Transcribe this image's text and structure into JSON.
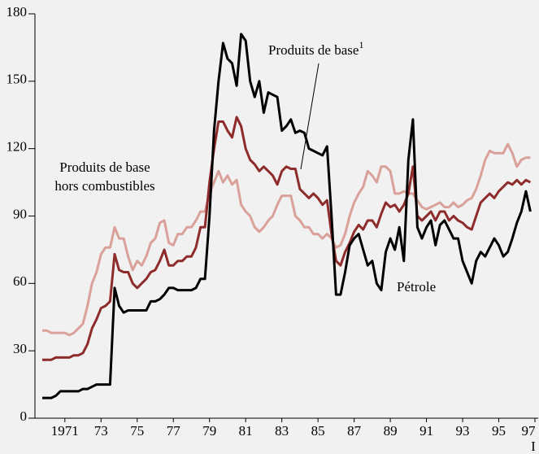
{
  "chart_data": {
    "type": "line",
    "x": [
      1970.25,
      1970.5,
      1970.75,
      1971,
      1971.25,
      1971.5,
      1971.75,
      1972,
      1972.25,
      1972.5,
      1972.75,
      1973,
      1973.25,
      1973.5,
      1973.75,
      1974,
      1974.25,
      1974.5,
      1974.75,
      1975,
      1975.25,
      1975.5,
      1975.75,
      1976,
      1976.25,
      1976.5,
      1976.75,
      1977,
      1977.25,
      1977.5,
      1977.75,
      1978,
      1978.25,
      1978.5,
      1978.75,
      1979,
      1979.25,
      1979.5,
      1979.75,
      1980,
      1980.25,
      1980.5,
      1980.75,
      1981,
      1981.25,
      1981.5,
      1981.75,
      1982,
      1982.25,
      1982.5,
      1982.75,
      1983,
      1983.25,
      1983.5,
      1983.75,
      1984,
      1984.25,
      1984.5,
      1984.75,
      1985,
      1985.25,
      1985.5,
      1985.75,
      1986,
      1986.25,
      1986.5,
      1986.75,
      1987,
      1987.25,
      1987.5,
      1987.75,
      1988,
      1988.25,
      1988.5,
      1988.75,
      1989,
      1989.25,
      1989.5,
      1989.75,
      1990,
      1990.25,
      1990.5,
      1990.75,
      1991,
      1991.25,
      1991.5,
      1991.75,
      1992,
      1992.25,
      1992.5,
      1992.75,
      1993,
      1993.25,
      1993.5,
      1993.75,
      1994,
      1994.25,
      1994.5,
      1994.75,
      1995,
      1995.25,
      1995.5,
      1995.75,
      1996,
      1996.25,
      1996.5,
      1996.75,
      1997,
      1997.25
    ],
    "series": [
      {
        "color": "#d9a19a",
        "values": [
          39,
          39,
          38,
          38,
          38,
          38,
          37,
          38,
          40,
          42,
          50,
          60,
          65,
          73,
          76,
          76,
          85,
          80,
          80,
          72,
          66,
          70,
          68,
          72,
          78,
          80,
          87,
          88,
          78,
          77,
          82,
          82,
          85,
          85,
          88,
          92,
          92,
          100,
          105,
          110,
          105,
          108,
          104,
          106,
          95,
          92,
          90,
          85,
          83,
          85,
          88,
          90,
          95,
          99,
          99,
          99,
          90,
          88,
          85,
          85,
          82,
          82,
          80,
          82,
          80,
          76,
          77,
          82,
          90,
          96,
          100,
          103,
          110,
          108,
          105,
          112,
          112,
          110,
          100,
          100,
          101,
          100,
          100,
          97,
          94,
          93,
          94,
          95,
          96,
          94,
          94,
          96,
          94,
          95,
          97,
          98,
          102,
          108,
          115,
          119,
          118,
          118,
          118,
          122,
          118,
          112,
          115,
          116,
          116
        ]
      },
      {
        "color": "#8e2b2b",
        "values": [
          26,
          26,
          26,
          27,
          27,
          27,
          27,
          28,
          28,
          29,
          33,
          40,
          44,
          49,
          50,
          52,
          73,
          66,
          65,
          65,
          60,
          58,
          60,
          62,
          65,
          66,
          70,
          75,
          68,
          68,
          70,
          70,
          72,
          72,
          76,
          85,
          85,
          105,
          120,
          132,
          132,
          128,
          125,
          134,
          130,
          120,
          115,
          113,
          110,
          112,
          110,
          108,
          104,
          110,
          112,
          111,
          111,
          102,
          100,
          98,
          100,
          98,
          95,
          97,
          82,
          70,
          68,
          74,
          78,
          83,
          86,
          84,
          88,
          88,
          85,
          91,
          96,
          94,
          95,
          92,
          95,
          100,
          112,
          90,
          88,
          90,
          92,
          88,
          92,
          92,
          88,
          90,
          88,
          87,
          85,
          84,
          90,
          96,
          98,
          100,
          98,
          101,
          103,
          105,
          104,
          106,
          104,
          106,
          105
        ]
      },
      {
        "color": "#000000",
        "values": [
          9,
          9,
          9,
          10,
          12,
          12,
          12,
          12,
          12,
          13,
          13,
          14,
          15,
          15,
          15,
          15,
          58,
          50,
          47,
          48,
          48,
          48,
          48,
          48,
          52,
          52,
          53,
          55,
          58,
          58,
          57,
          57,
          57,
          57,
          58,
          62,
          62,
          90,
          128,
          150,
          167,
          160,
          158,
          148,
          171,
          168,
          150,
          143,
          150,
          136,
          145,
          144,
          143,
          128,
          130,
          133,
          127,
          128,
          127,
          120,
          119,
          118,
          117,
          121,
          90,
          55,
          55,
          65,
          77,
          80,
          82,
          75,
          68,
          70,
          60,
          57,
          74,
          80,
          75,
          85,
          70,
          115,
          133,
          85,
          80,
          85,
          88,
          77,
          86,
          88,
          84,
          80,
          80,
          70,
          65,
          60,
          70,
          74,
          72,
          76,
          80,
          77,
          72,
          74,
          80,
          87,
          92,
          101,
          92
        ]
      }
    ],
    "xlim": [
      1970.25,
      1997.5
    ],
    "xticks": [
      {
        "value": 1971.5,
        "label": "1971"
      },
      {
        "value": 1973.5,
        "label": "73"
      },
      {
        "value": 1975.5,
        "label": "75"
      },
      {
        "value": 1977.5,
        "label": "77"
      },
      {
        "value": 1979.5,
        "label": "79"
      },
      {
        "value": 1981.5,
        "label": "81"
      },
      {
        "value": 1983.5,
        "label": "83"
      },
      {
        "value": 1985.5,
        "label": "85"
      },
      {
        "value": 1987.5,
        "label": "87"
      },
      {
        "value": 1989.5,
        "label": "89"
      },
      {
        "value": 1991.5,
        "label": "91"
      },
      {
        "value": 1993.5,
        "label": "93"
      },
      {
        "value": 1995.5,
        "label": "95"
      },
      {
        "value": 1997.5,
        "label": "97"
      }
    ],
    "x_sublabel": "I",
    "ylim": [
      0,
      180
    ],
    "yticks": [
      0,
      30,
      60,
      90,
      120,
      150,
      180
    ],
    "annotations": [
      {
        "text": "Produits de base",
        "sup": "1"
      },
      {
        "text": "Produits de base"
      },
      {
        "text": "hors combustibles"
      },
      {
        "text": "Pétrole"
      }
    ]
  }
}
